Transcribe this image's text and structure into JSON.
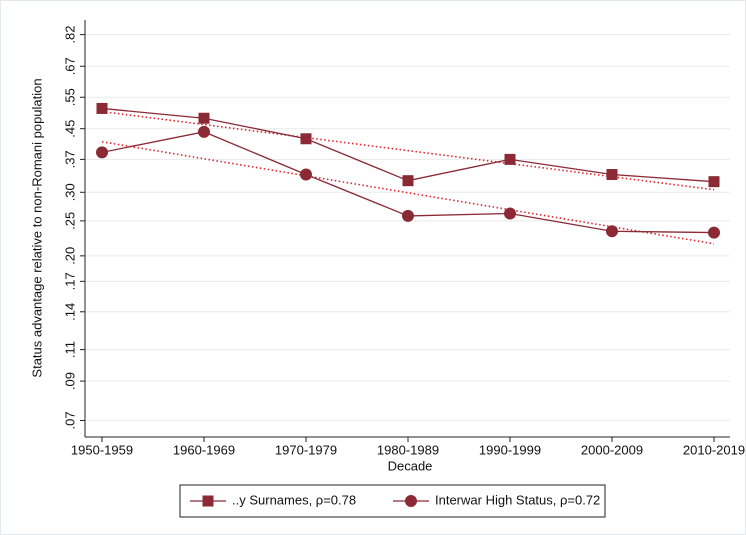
{
  "chart_data": {
    "type": "line",
    "y_label": "Status advantage relative to non-Romani population",
    "x_label": "Decade",
    "categories": [
      "1950-1959",
      "1960-1969",
      "1970-1979",
      "1980-1989",
      "1990-1999",
      "2000-2009",
      "2010-2019"
    ],
    "series": [
      {
        "name": "..y Surnames, ρ=0.78",
        "color": "#8b2a35",
        "marker": "square",
        "values": [
          0.512,
          0.481,
          0.422,
          0.323,
          0.37,
          0.336,
          0.321
        ],
        "fit": [
          0.502,
          0.305
        ],
        "fit_color": "#e0242c"
      },
      {
        "name": "Interwar High Status, ρ=0.72",
        "color": "#8b2a35",
        "marker": "circle",
        "values": [
          0.387,
          0.441,
          0.336,
          0.258,
          0.262,
          0.234,
          0.232
        ],
        "fit": [
          0.414,
          0.216
        ],
        "fit_color": "#e0242c"
      }
    ],
    "ylog": true,
    "ylim": [
      0.063,
      0.9
    ],
    "yticks": [
      {
        "value": 0.07,
        "label": ".07"
      },
      {
        "value": 0.09,
        "label": ".09"
      },
      {
        "value": 0.11,
        "label": ".11"
      },
      {
        "value": 0.14,
        "label": ".14"
      },
      {
        "value": 0.17,
        "label": ".17"
      },
      {
        "value": 0.2,
        "label": ".20"
      },
      {
        "value": 0.25,
        "label": ".25"
      },
      {
        "value": 0.3,
        "label": ".30"
      },
      {
        "value": 0.37,
        "label": ".37"
      },
      {
        "value": 0.45,
        "label": ".45"
      },
      {
        "value": 0.55,
        "label": ".55"
      },
      {
        "value": 0.67,
        "label": ".67"
      },
      {
        "value": 0.82,
        "label": ".82"
      }
    ],
    "grid": true,
    "legend": "bottom"
  }
}
